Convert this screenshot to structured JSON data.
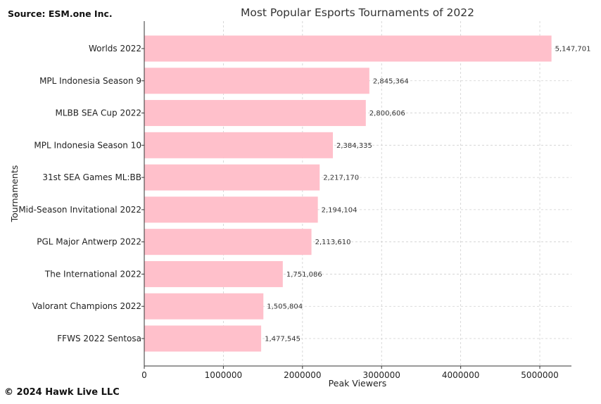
{
  "source_note": "Source: ESM.one Inc.",
  "copyright": "© 2024 Hawk Live LLC",
  "chart_data": {
    "type": "bar",
    "orientation": "horizontal",
    "title": "Most Popular Esports Tournaments of 2022",
    "xlabel": "Peak Viewers",
    "ylabel": "Tournaments",
    "xlim": [
      0,
      5400000
    ],
    "xticks": [
      0,
      1000000,
      2000000,
      3000000,
      4000000,
      5000000
    ],
    "xtick_labels": [
      "0",
      "1000000",
      "2000000",
      "3000000",
      "4000000",
      "5000000"
    ],
    "grid": true,
    "bar_color": "#ffc0cb",
    "categories": [
      "Worlds 2022",
      "MPL Indonesia Season 9",
      "MLBB SEA Cup 2022",
      "MPL Indonesia Season 10",
      "31st SEA Games ML:BB",
      "Mid-Season Invitational 2022",
      "PGL Major Antwerp 2022",
      "The International 2022",
      "Valorant Champions 2022",
      "FFWS 2022 Sentosa"
    ],
    "values": [
      5147701,
      2845364,
      2800606,
      2384335,
      2217170,
      2194104,
      2113610,
      1751086,
      1505804,
      1477545
    ],
    "value_labels": [
      "5,147,701",
      "2,845,364",
      "2,800,606",
      "2,384,335",
      "2,217,170",
      "2,194,104",
      "2,113,610",
      "1,751,086",
      "1,505,804",
      "1,477,545"
    ]
  }
}
